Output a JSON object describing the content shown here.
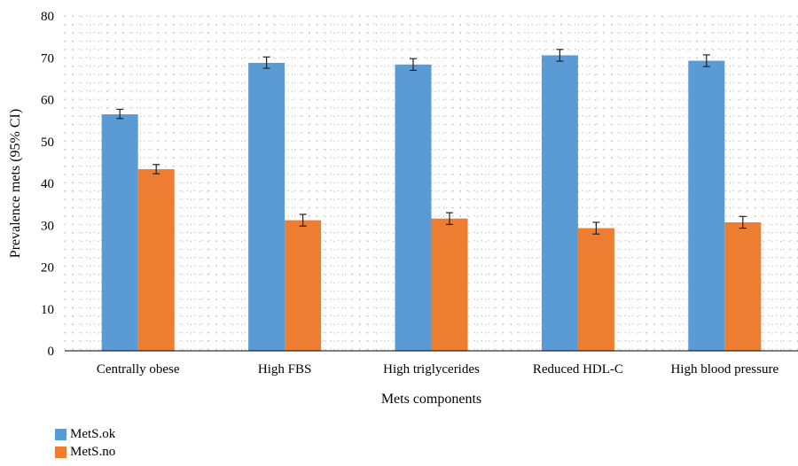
{
  "chart_data": {
    "type": "bar",
    "xlabel": "Mets components",
    "ylabel": "Prevalence mets (95% CI)",
    "ylim": [
      0,
      80
    ],
    "yticks": [
      0,
      10,
      20,
      30,
      40,
      50,
      60,
      70,
      80
    ],
    "grid": "dotted",
    "legend_position": "bottom-left",
    "categories": [
      "Centrally obese",
      "High FBS",
      "High triglycerides",
      "Reduced HDL-C",
      "High blood pressure"
    ],
    "series": [
      {
        "name": "MetS.ok",
        "color": "#5B9BD5",
        "values": [
          56.5,
          68.8,
          68.4,
          70.6,
          69.3
        ],
        "ci_low": [
          55.5,
          67.5,
          67.0,
          69.2,
          67.9
        ],
        "ci_high": [
          57.7,
          70.2,
          69.8,
          72.0,
          70.7
        ]
      },
      {
        "name": "MetS.no",
        "color": "#ED7D31",
        "values": [
          43.4,
          31.2,
          31.6,
          29.3,
          30.7
        ],
        "ci_low": [
          42.3,
          29.8,
          30.2,
          27.9,
          29.3
        ],
        "ci_high": [
          44.5,
          32.6,
          33.0,
          30.7,
          32.1
        ]
      }
    ]
  }
}
